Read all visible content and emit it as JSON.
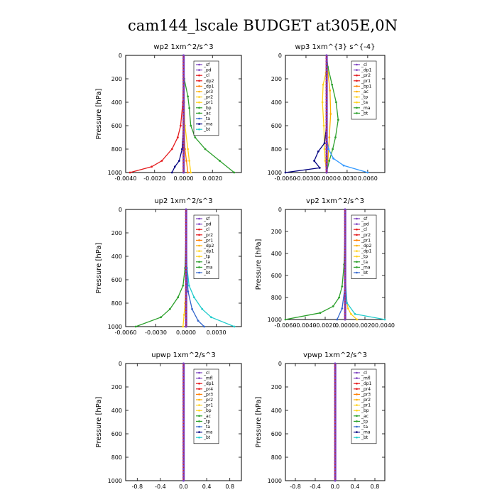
{
  "title": "cam144_lscale  BUDGET at305E,0N",
  "chart_data": [
    {
      "type": "line",
      "title": "wp2  1xm^2/s^3",
      "ylabel": "Pressure [hPa]",
      "xlim": [
        -0.004,
        0.004
      ],
      "ylim": [
        0,
        1000
      ],
      "yticks": [
        "0",
        "200",
        "400",
        "600",
        "800",
        "1000"
      ],
      "xticks": [
        {
          "v": -0.004,
          "t": "-0.0040"
        },
        {
          "v": -0.002,
          "t": "-0.0020"
        },
        {
          "v": 0,
          "t": "0.0000"
        },
        {
          "v": 0.002,
          "t": "0.0020"
        }
      ],
      "legend": [
        "_sf",
        "_pd",
        "_cl",
        "_dp2",
        "_dp1",
        "_pr3",
        "_pr2",
        "_pr1",
        "_bp",
        "_ac",
        "_ta",
        "_ma",
        "_bt"
      ],
      "series": [
        {
          "name": "_cl",
          "color": "#e41a1c",
          "p": [
            0,
            200,
            400,
            600,
            700,
            800,
            900,
            950,
            1000
          ],
          "v": [
            0,
            0,
            -5e-05,
            -0.0002,
            -0.0004,
            -0.0008,
            -0.0015,
            -0.0022,
            -0.0037
          ]
        },
        {
          "name": "_dp1",
          "color": "#ff7f00",
          "p": [
            0,
            200,
            400,
            600,
            800,
            900,
            1000
          ],
          "v": [
            0,
            0,
            0,
            5e-05,
            0.0001,
            0.0002,
            0.0003
          ]
        },
        {
          "name": "_pr2",
          "color": "#ffd21a",
          "p": [
            0,
            200,
            400,
            600,
            800,
            900,
            1000
          ],
          "v": [
            0,
            0,
            5e-05,
            0.0001,
            0.0003,
            0.0004,
            0.0005
          ]
        },
        {
          "name": "_bp",
          "color": "#2ca02c",
          "p": [
            0,
            200,
            350,
            450,
            600,
            700,
            800,
            900,
            1000
          ],
          "v": [
            0,
            5e-05,
            0.0003,
            0.0004,
            0.0005,
            0.0008,
            0.0015,
            0.0025,
            0.0035
          ]
        },
        {
          "name": "_ac",
          "color": "#3399ff",
          "p": [
            0,
            200,
            600,
            800,
            900,
            1000
          ],
          "v": [
            0,
            0,
            0,
            0,
            0,
            0
          ]
        },
        {
          "name": "_ta",
          "color": "#000080",
          "p": [
            0,
            200,
            600,
            800,
            900,
            950,
            1000
          ],
          "v": [
            0,
            0,
            0,
            -0.0001,
            -0.0003,
            -0.0006,
            -0.0008
          ]
        },
        {
          "name": "_bt",
          "color": "#22cccc",
          "p": [
            0,
            200,
            600,
            800,
            1000
          ],
          "v": [
            0,
            0,
            0,
            0,
            0
          ]
        },
        {
          "name": "_sf",
          "color": "#7b3fbf",
          "p": [
            0,
            200,
            600,
            800,
            1000
          ],
          "v": [
            0,
            0,
            0,
            0,
            0
          ]
        }
      ]
    },
    {
      "type": "line",
      "title": "wp3  1xm^{3} s^{-4}",
      "ylabel": "",
      "xlim": [
        -0.006,
        0.0085
      ],
      "ylim": [
        0,
        1000
      ],
      "yticks": [
        "0",
        "200",
        "400",
        "600",
        "800",
        "1000"
      ],
      "xticks": [
        {
          "v": -0.006,
          "t": "-0.0060"
        },
        {
          "v": -0.003,
          "t": "-0.0030"
        },
        {
          "v": 0,
          "t": "0.0000"
        },
        {
          "v": 0.003,
          "t": "0.0030"
        },
        {
          "v": 0.006,
          "t": "0.0060"
        }
      ],
      "legend": [
        "_cl",
        "_dp1",
        "_pr2",
        "_pr1",
        "_bp1",
        "_ac",
        "_tp",
        "_ta",
        "_ma",
        "_bt"
      ],
      "series": [
        {
          "name": "_pr2",
          "color": "#ffd21a",
          "p": [
            0,
            150,
            250,
            400,
            600,
            800,
            900,
            1000
          ],
          "v": [
            0,
            -0.0001,
            -0.0005,
            -0.0006,
            -0.0004,
            -0.0003,
            -0.0002,
            0
          ]
        },
        {
          "name": "_pr1",
          "color": "#ffb000",
          "p": [
            0,
            150,
            300,
            500,
            700,
            900,
            1000
          ],
          "v": [
            0,
            0.0002,
            0.0005,
            0.0006,
            0.0004,
            0.0002,
            0
          ]
        },
        {
          "name": "_ac",
          "color": "#2ca02c",
          "p": [
            0,
            100,
            250,
            400,
            550,
            700,
            800,
            900,
            1000
          ],
          "v": [
            0,
            0.0002,
            0.0008,
            0.0014,
            0.0017,
            0.0013,
            0.0009,
            0.0004,
            0
          ]
        },
        {
          "name": "_tp",
          "color": "#000080",
          "p": [
            0,
            600,
            750,
            820,
            900,
            960,
            1000
          ],
          "v": [
            0,
            0,
            -0.0003,
            -0.0012,
            -0.0018,
            -0.001,
            -0.006
          ]
        },
        {
          "name": "_ma",
          "color": "#3399ff",
          "p": [
            0,
            700,
            800,
            880,
            940,
            1000
          ],
          "v": [
            0,
            0,
            0.0003,
            0.001,
            0.0025,
            0.006
          ]
        },
        {
          "name": "_cl",
          "color": "#e41a1c",
          "p": [
            0,
            200,
            600,
            800,
            1000
          ],
          "v": [
            0,
            0,
            0,
            0,
            0
          ]
        },
        {
          "name": "_dp1",
          "color": "#ff7f00",
          "p": [
            0,
            200,
            600,
            800,
            1000
          ],
          "v": [
            0,
            0,
            0,
            0,
            0
          ]
        },
        {
          "name": "_bt",
          "color": "#7b3fbf",
          "p": [
            0,
            200,
            600,
            800,
            1000
          ],
          "v": [
            0,
            0,
            0,
            0,
            0
          ]
        }
      ]
    },
    {
      "type": "line",
      "title": "up2  1xm^2/s^3",
      "ylabel": "Pressure [hPa]",
      "xlim": [
        -0.006,
        0.0055
      ],
      "ylim": [
        0,
        1000
      ],
      "yticks": [
        "0",
        "200",
        "400",
        "600",
        "800",
        "1000"
      ],
      "xticks": [
        {
          "v": -0.006,
          "t": "-0.0060"
        },
        {
          "v": -0.003,
          "t": "-0.0030"
        },
        {
          "v": 0,
          "t": "0.0000"
        },
        {
          "v": 0.003,
          "t": "0.0030"
        }
      ],
      "legend": [
        "_sf",
        "_pd",
        "_cl",
        "_pr2",
        "_pr1",
        "_dp2",
        "_dp1",
        "_tp",
        "_ta",
        "_ma",
        "_bt"
      ],
      "series": [
        {
          "name": "_dp2",
          "color": "#2ca02c",
          "p": [
            0,
            200,
            500,
            650,
            750,
            850,
            920,
            1000
          ],
          "v": [
            0,
            0,
            -0.0001,
            -0.0003,
            -0.0008,
            -0.0016,
            -0.0025,
            -0.005
          ]
        },
        {
          "name": "_dp1",
          "color": "#22cccc",
          "p": [
            0,
            200,
            500,
            650,
            750,
            850,
            920,
            1000
          ],
          "v": [
            0,
            0,
            0.0001,
            0.0003,
            0.0008,
            0.0016,
            0.0025,
            0.0048
          ]
        },
        {
          "name": "_tp",
          "color": "#3366cc",
          "p": [
            0,
            400,
            700,
            850,
            950,
            1000
          ],
          "v": [
            0,
            0,
            0.0002,
            0.0006,
            0.0012,
            0.0018
          ]
        },
        {
          "name": "_pr1",
          "color": "#ffd21a",
          "p": [
            0,
            600,
            800,
            900,
            1000
          ],
          "v": [
            0,
            0,
            -0.0001,
            -0.0002,
            -0.0003
          ]
        },
        {
          "name": "_cl",
          "color": "#e41a1c",
          "p": [
            0,
            200,
            600,
            800,
            1000
          ],
          "v": [
            0,
            0,
            0,
            0,
            0
          ]
        },
        {
          "name": "_sf",
          "color": "#7b3fbf",
          "p": [
            0,
            200,
            600,
            800,
            1000
          ],
          "v": [
            0,
            0,
            0,
            0,
            0
          ]
        }
      ]
    },
    {
      "type": "line",
      "title": "vp2  1xm^2/s^3",
      "ylabel": "Pressure [hPa]",
      "xlim": [
        -0.006,
        0.004
      ],
      "ylim": [
        0,
        1000
      ],
      "yticks": [
        "0",
        "200",
        "400",
        "600",
        "800",
        "1000"
      ],
      "xticks": [
        {
          "v": -0.006,
          "t": "-0.0060"
        },
        {
          "v": -0.004,
          "t": "-0.0040"
        },
        {
          "v": -0.002,
          "t": "-0.0020"
        },
        {
          "v": 0,
          "t": "0.0000"
        },
        {
          "v": 0.002,
          "t": "0.0020"
        },
        {
          "v": 0.004,
          "t": "0.0040"
        }
      ],
      "legend": [
        "_sf",
        "_pd",
        "_cl",
        "_pr2",
        "_pr1",
        "_dp2",
        "_dp1",
        "_tp",
        "_ta",
        "_ma",
        "_bt"
      ],
      "series": [
        {
          "name": "_dp2",
          "color": "#2ca02c",
          "p": [
            0,
            200,
            500,
            700,
            800,
            880,
            940,
            1000
          ],
          "v": [
            0,
            0,
            -0.0001,
            -0.0003,
            -0.0006,
            -0.0012,
            -0.0025,
            -0.006
          ]
        },
        {
          "name": "_pr1",
          "color": "#ffd21a",
          "p": [
            0,
            600,
            800,
            900,
            950,
            1000
          ],
          "v": [
            0,
            0,
            0.0001,
            0.0003,
            0.0006,
            0.0012
          ]
        },
        {
          "name": "_dp1",
          "color": "#22cccc",
          "p": [
            0,
            600,
            850,
            950,
            1000
          ],
          "v": [
            0,
            0,
            0.0002,
            0.001,
            0.004
          ]
        },
        {
          "name": "_tp",
          "color": "#3366cc",
          "p": [
            0,
            700,
            900,
            1000
          ],
          "v": [
            0,
            0,
            -0.0003,
            -0.0008
          ]
        },
        {
          "name": "_cl",
          "color": "#e41a1c",
          "p": [
            0,
            200,
            600,
            800,
            1000
          ],
          "v": [
            0,
            0,
            0,
            0,
            0
          ]
        },
        {
          "name": "_sf",
          "color": "#7b3fbf",
          "p": [
            0,
            200,
            600,
            800,
            1000
          ],
          "v": [
            0,
            0,
            0,
            0,
            0
          ]
        }
      ]
    },
    {
      "type": "line",
      "title": "upwp  1xm^2/s^3",
      "ylabel": "Pressure [hPa]",
      "xlim": [
        -1.0,
        1.0
      ],
      "ylim": [
        0,
        1000
      ],
      "yticks": [
        "0",
        "200",
        "400",
        "600",
        "800",
        "1000"
      ],
      "xticks": [
        {
          "v": -0.8,
          "t": "-0.8"
        },
        {
          "v": -0.4,
          "t": "-0.4"
        },
        {
          "v": 0,
          "t": "0.0"
        },
        {
          "v": 0.4,
          "t": "0.4"
        },
        {
          "v": 0.8,
          "t": "0.8"
        }
      ],
      "legend": [
        "_cl",
        "_mfl",
        "_dp1",
        "_pr4",
        "_pr3",
        "_pr2",
        "_pr1",
        "_bp",
        "_ac",
        "_tp",
        "_ta",
        "_ma",
        "_bt"
      ],
      "series": [
        {
          "name": "_bt",
          "color": "#7b3fbf",
          "p": [
            0,
            200,
            400,
            600,
            800,
            1000
          ],
          "v": [
            0,
            0,
            0,
            0,
            0,
            0
          ]
        }
      ]
    },
    {
      "type": "line",
      "title": "vpwp  1xm^2/s^3",
      "ylabel": "Pressure [hPa]",
      "xlim": [
        -1.0,
        1.0
      ],
      "ylim": [
        0,
        1000
      ],
      "yticks": [
        "0",
        "200",
        "400",
        "600",
        "800",
        "1000"
      ],
      "xticks": [
        {
          "v": -0.8,
          "t": "-0.8"
        },
        {
          "v": -0.4,
          "t": "-0.4"
        },
        {
          "v": 0,
          "t": "0.0"
        },
        {
          "v": 0.4,
          "t": "0.4"
        },
        {
          "v": 0.8,
          "t": "0.8"
        }
      ],
      "legend": [
        "_cl",
        "_mfl",
        "_dp1",
        "_pr4",
        "_pr3",
        "_pr2",
        "_pr1",
        "_bp",
        "_ac",
        "_tp",
        "_ta",
        "_ma",
        "_bt"
      ],
      "series": [
        {
          "name": "_bt",
          "color": "#7b3fbf",
          "p": [
            0,
            200,
            400,
            600,
            800,
            1000
          ],
          "v": [
            0,
            0,
            0,
            0,
            0,
            0
          ]
        }
      ]
    }
  ]
}
